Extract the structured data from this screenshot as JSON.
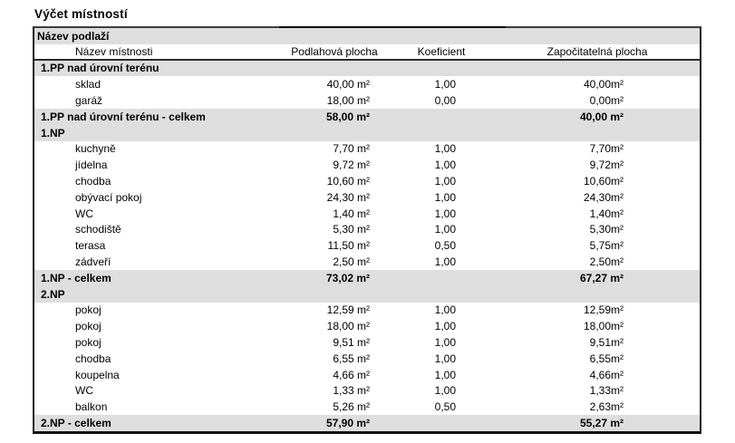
{
  "title": "Výčet místností",
  "colors": {
    "section_row_bg": "#dedede",
    "table_border": "#1c1c1c"
  },
  "table": {
    "header_floor": "Název podlaží",
    "columns": [
      "Název místnosti",
      "Podlahová plocha",
      "Koeficient",
      "Započitatelná plocha"
    ],
    "rows": [
      {
        "type": "section",
        "label": "1.PP nad úrovní terénu"
      },
      {
        "type": "room",
        "name": "sklad",
        "area": "40,00 m²",
        "coef": "1,00",
        "counted": "40,00m²"
      },
      {
        "type": "room",
        "name": "garáž",
        "area": "18,00 m²",
        "coef": "0,00",
        "counted": "0,00m²"
      },
      {
        "type": "total",
        "label": "1.PP nad úrovní terénu - celkem",
        "area": "58,00 m²",
        "counted": "40,00 m²"
      },
      {
        "type": "section",
        "label": "1.NP"
      },
      {
        "type": "room",
        "name": "kuchyně",
        "area": "7,70 m²",
        "coef": "1,00",
        "counted": "7,70m²"
      },
      {
        "type": "room",
        "name": "jídelna",
        "area": "9,72 m²",
        "coef": "1,00",
        "counted": "9,72m²"
      },
      {
        "type": "room",
        "name": "chodba",
        "area": "10,60 m²",
        "coef": "1,00",
        "counted": "10,60m²"
      },
      {
        "type": "room",
        "name": "obývací pokoj",
        "area": "24,30 m²",
        "coef": "1,00",
        "counted": "24,30m²"
      },
      {
        "type": "room",
        "name": "WC",
        "area": "1,40 m²",
        "coef": "1,00",
        "counted": "1,40m²"
      },
      {
        "type": "room",
        "name": "schodiště",
        "area": "5,30 m²",
        "coef": "1,00",
        "counted": "5,30m²"
      },
      {
        "type": "room",
        "name": "terasa",
        "area": "11,50 m²",
        "coef": "0,50",
        "counted": "5,75m²"
      },
      {
        "type": "room",
        "name": "zádveří",
        "area": "2,50 m²",
        "coef": "1,00",
        "counted": "2,50m²"
      },
      {
        "type": "total",
        "label": "1.NP - celkem",
        "area": "73,02 m²",
        "counted": "67,27 m²"
      },
      {
        "type": "section",
        "label": "2.NP"
      },
      {
        "type": "room",
        "name": "pokoj",
        "area": "12,59 m²",
        "coef": "1,00",
        "counted": "12,59m²"
      },
      {
        "type": "room",
        "name": "pokoj",
        "area": "18,00 m²",
        "coef": "1,00",
        "counted": "18,00m²"
      },
      {
        "type": "room",
        "name": "pokoj",
        "area": "9,51 m²",
        "coef": "1,00",
        "counted": "9,51m²"
      },
      {
        "type": "room",
        "name": "chodba",
        "area": "6,55 m²",
        "coef": "1,00",
        "counted": "6,55m²"
      },
      {
        "type": "room",
        "name": "koupelna",
        "area": "4,66 m²",
        "coef": "1,00",
        "counted": "4,66m²"
      },
      {
        "type": "room",
        "name": "WC",
        "area": "1,33 m²",
        "coef": "1,00",
        "counted": "1,33m²"
      },
      {
        "type": "room",
        "name": "balkon",
        "area": "5,26 m²",
        "coef": "0,50",
        "counted": "2,63m²"
      },
      {
        "type": "total",
        "label": "2.NP - celkem",
        "area": "57,90 m²",
        "counted": "55,27 m²"
      }
    ]
  }
}
